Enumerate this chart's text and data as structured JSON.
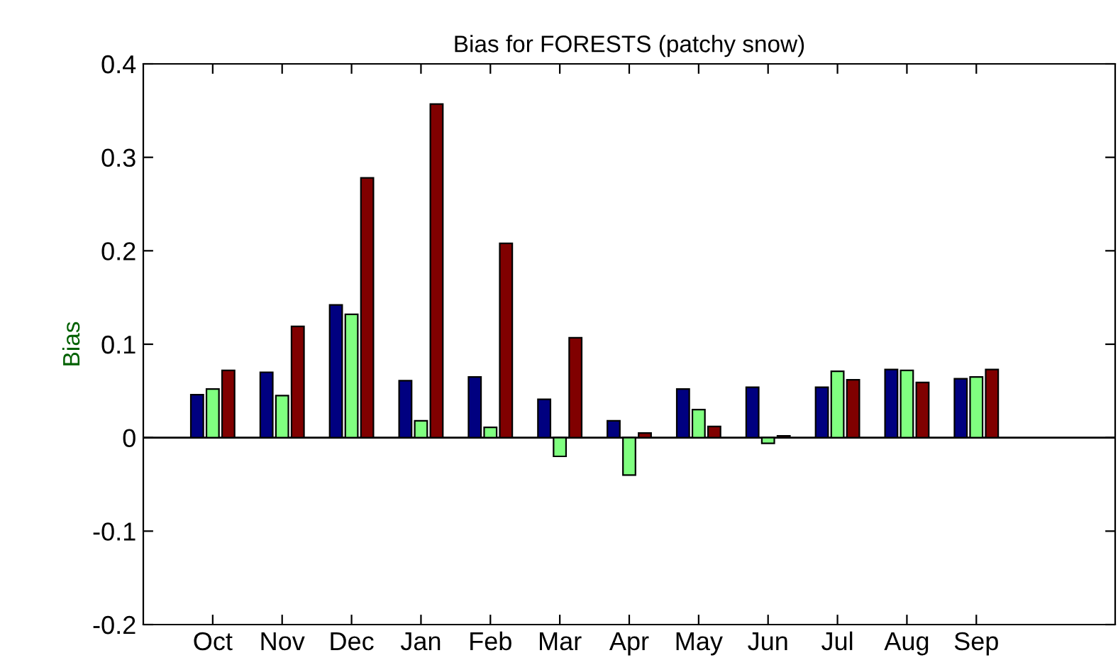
{
  "chart_data": {
    "type": "bar",
    "title": "Bias for FORESTS (patchy snow)",
    "ylabel": "Bias",
    "categories": [
      "Oct",
      "Nov",
      "Dec",
      "Jan",
      "Feb",
      "Mar",
      "Apr",
      "May",
      "Jun",
      "Jul",
      "Aug",
      "Sep"
    ],
    "series": [
      {
        "color": "#000080",
        "values": [
          0.046,
          0.07,
          0.142,
          0.061,
          0.065,
          0.041,
          0.018,
          0.052,
          0.054,
          0.054,
          0.073,
          0.063
        ]
      },
      {
        "color": "#80ff80",
        "values": [
          0.052,
          0.045,
          0.132,
          0.018,
          0.011,
          -0.02,
          -0.04,
          0.03,
          -0.006,
          0.071,
          0.072,
          0.065
        ]
      },
      {
        "color": "#800000",
        "values": [
          0.072,
          0.119,
          0.278,
          0.357,
          0.208,
          0.107,
          0.005,
          0.012,
          0.002,
          0.062,
          0.059,
          0.073
        ]
      }
    ],
    "ylim": [
      -0.2,
      0.4
    ],
    "yticks": [
      -0.2,
      -0.1,
      0,
      0.1,
      0.2,
      0.3,
      0.4
    ],
    "ref_lines": [
      {
        "axis": "y",
        "value": 0,
        "color": "#000000"
      }
    ],
    "grid": false,
    "legend": false
  }
}
